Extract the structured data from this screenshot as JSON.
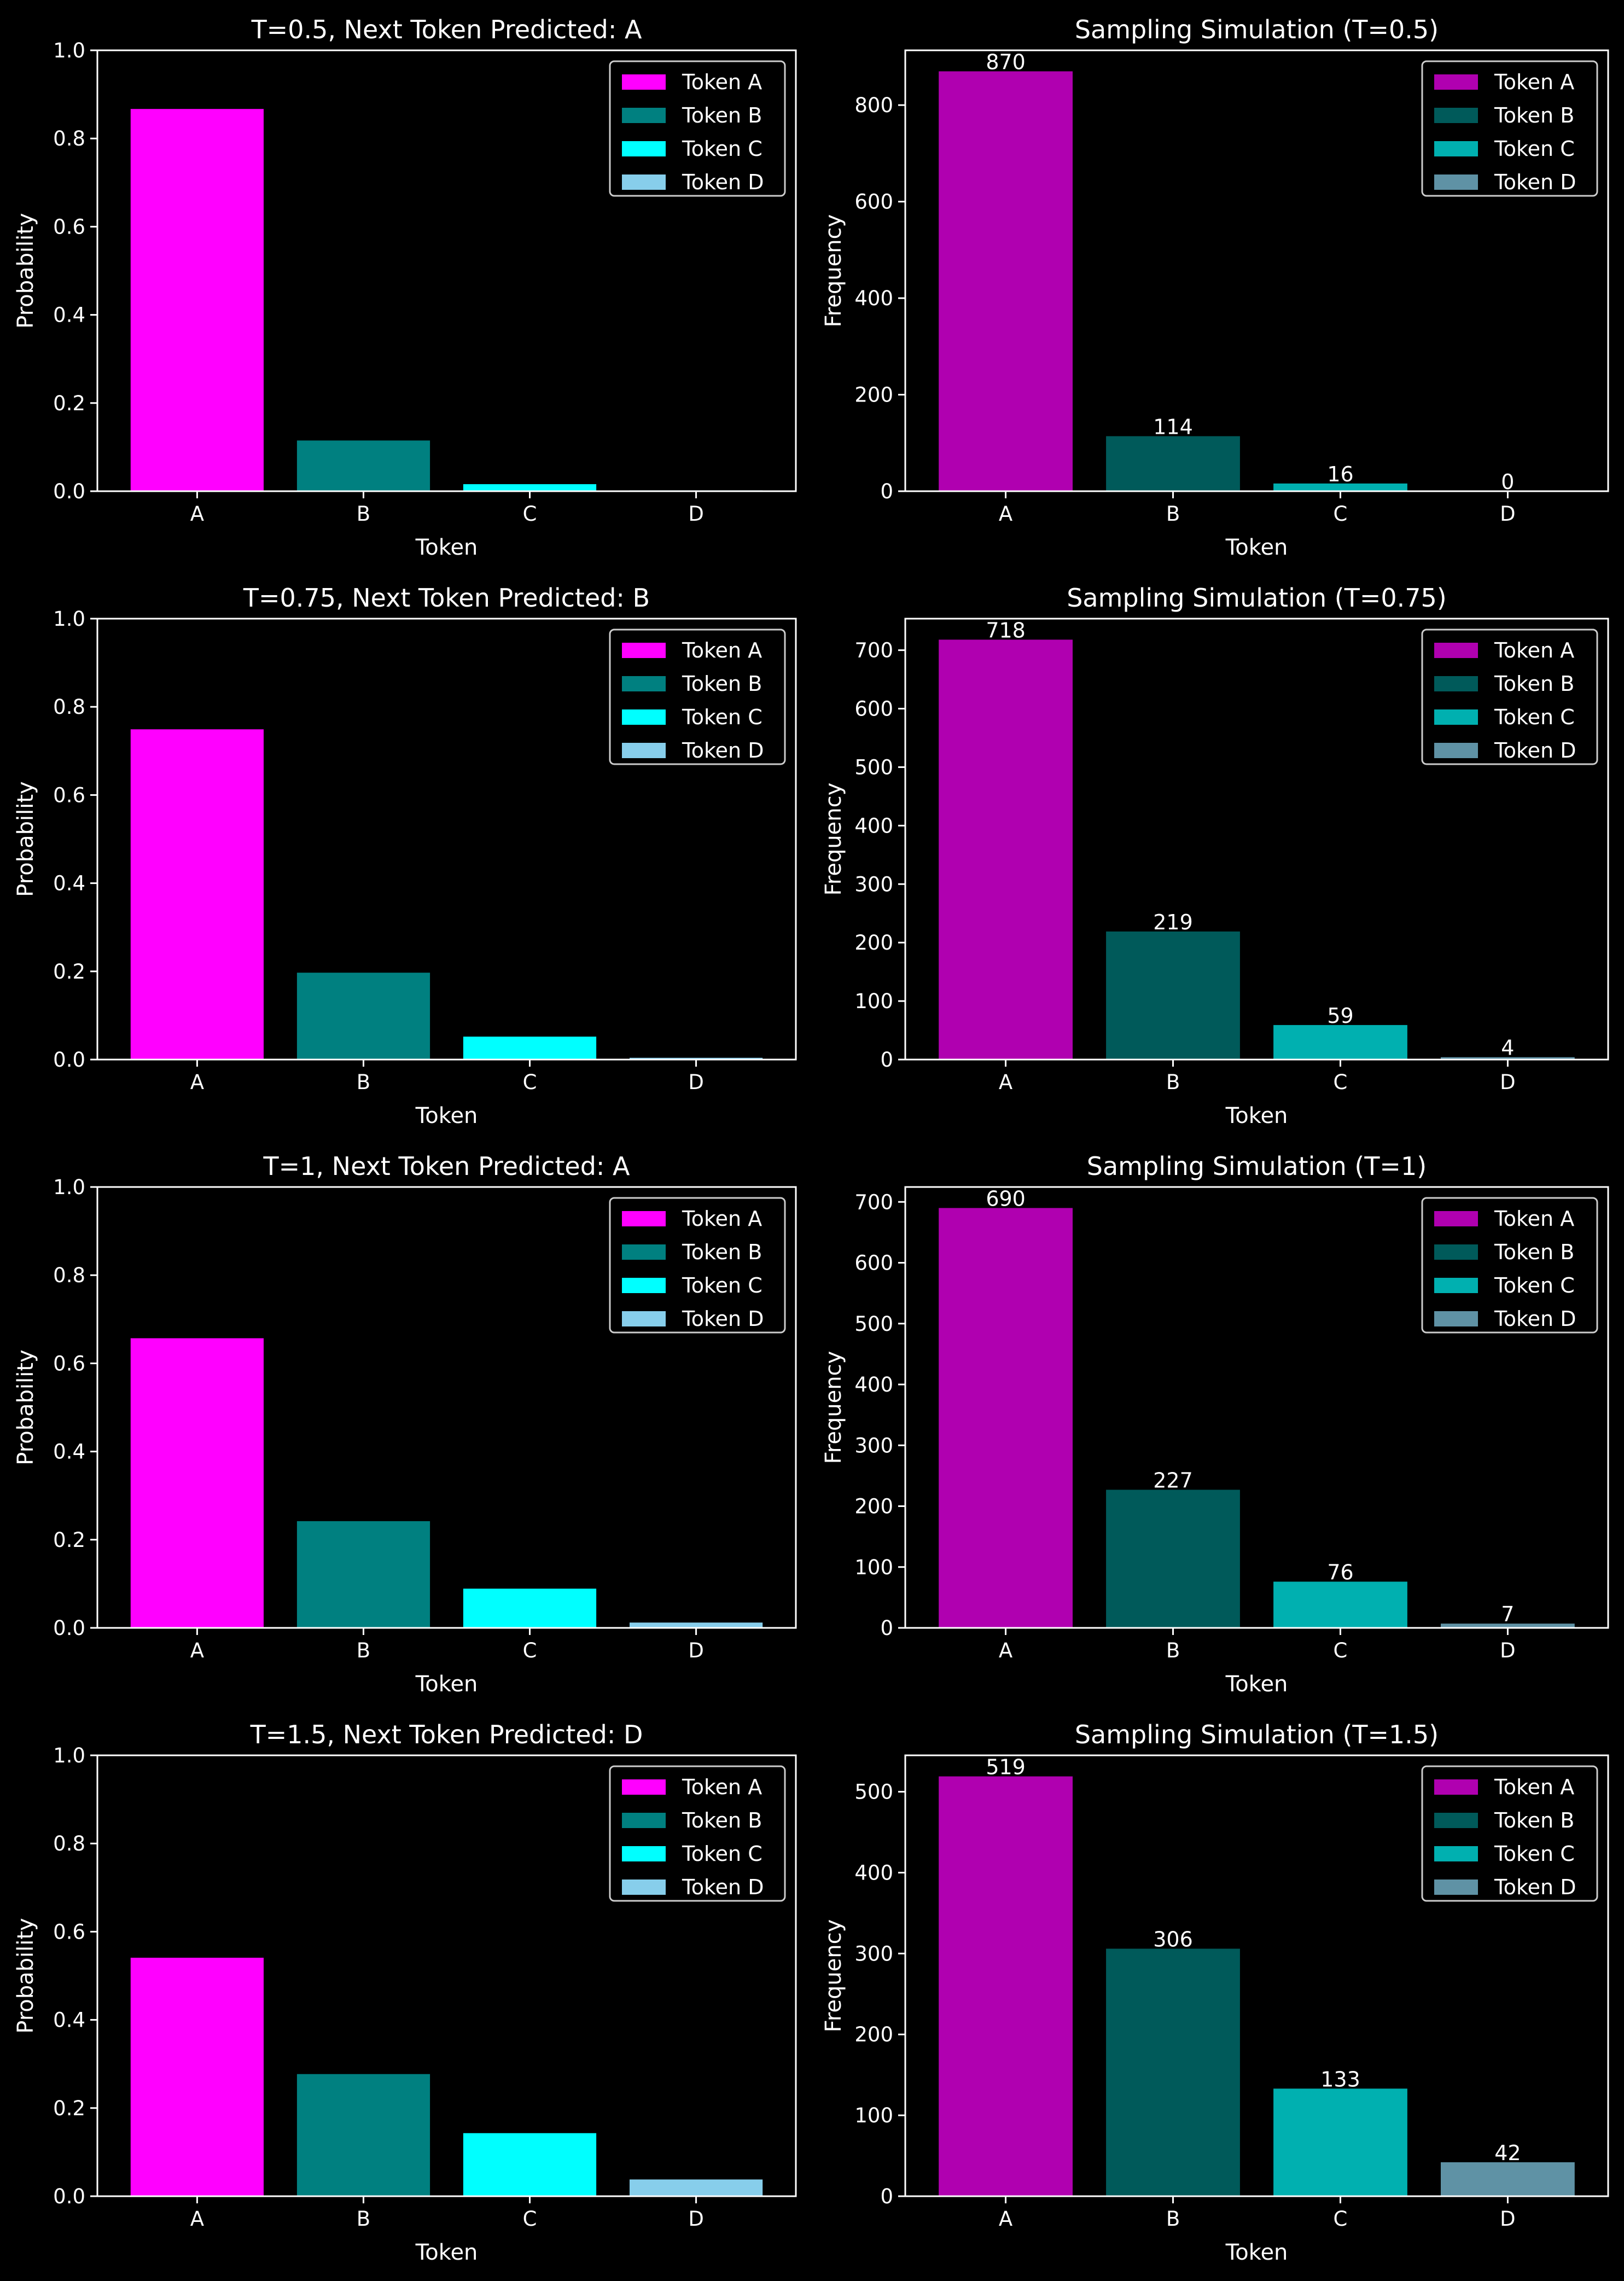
{
  "chart_data": [
    {
      "type": "bar",
      "title": "T=0.5, Next Token Predicted: A",
      "xlabel": "Token",
      "ylabel": "Probability",
      "categories": [
        "A",
        "B",
        "C",
        "D"
      ],
      "values": [
        0.867,
        0.115,
        0.016,
        0.002
      ],
      "ylim": [
        0,
        1.0
      ],
      "yticks": [
        0.0,
        0.2,
        0.4,
        0.6,
        0.8,
        1.0
      ],
      "ytick_labels": [
        "0.0",
        "0.2",
        "0.4",
        "0.6",
        "0.8",
        "1.0"
      ],
      "colors": [
        "#ff00ff",
        "#008080",
        "#00ffff",
        "#87ceeb"
      ],
      "legend": [
        "Token A",
        "Token B",
        "Token C",
        "Token D"
      ],
      "legend_position": "top-right",
      "grid": false
    },
    {
      "type": "bar",
      "title": "Sampling Simulation (T=0.5)",
      "xlabel": "Token",
      "ylabel": "Frequency",
      "categories": [
        "A",
        "B",
        "C",
        "D"
      ],
      "values": [
        870,
        114,
        16,
        0
      ],
      "data_labels": [
        "870",
        "114",
        "16",
        "0"
      ],
      "ylim": [
        0,
        913.5
      ],
      "yticks": [
        0,
        200,
        400,
        600,
        800
      ],
      "ytick_labels": [
        "0",
        "200",
        "400",
        "600",
        "800"
      ],
      "colors": [
        "#b000b0",
        "#005a5a",
        "#00b0b0",
        "#5f92a5"
      ],
      "legend": [
        "Token A",
        "Token B",
        "Token C",
        "Token D"
      ],
      "legend_position": "top-right",
      "grid": false
    },
    {
      "type": "bar",
      "title": "T=0.75, Next Token Predicted: B",
      "xlabel": "Token",
      "ylabel": "Probability",
      "categories": [
        "A",
        "B",
        "C",
        "D"
      ],
      "values": [
        0.749,
        0.197,
        0.052,
        0.004
      ],
      "ylim": [
        0,
        1.0
      ],
      "yticks": [
        0.0,
        0.2,
        0.4,
        0.6,
        0.8,
        1.0
      ],
      "ytick_labels": [
        "0.0",
        "0.2",
        "0.4",
        "0.6",
        "0.8",
        "1.0"
      ],
      "colors": [
        "#ff00ff",
        "#008080",
        "#00ffff",
        "#87ceeb"
      ],
      "legend": [
        "Token A",
        "Token B",
        "Token C",
        "Token D"
      ],
      "legend_position": "top-right",
      "grid": false
    },
    {
      "type": "bar",
      "title": "Sampling Simulation (T=0.75)",
      "xlabel": "Token",
      "ylabel": "Frequency",
      "categories": [
        "A",
        "B",
        "C",
        "D"
      ],
      "values": [
        718,
        219,
        59,
        4
      ],
      "data_labels": [
        "718",
        "219",
        "59",
        "4"
      ],
      "ylim": [
        0,
        753.9
      ],
      "yticks": [
        0,
        100,
        200,
        300,
        400,
        500,
        600,
        700
      ],
      "ytick_labels": [
        "0",
        "100",
        "200",
        "300",
        "400",
        "500",
        "600",
        "700"
      ],
      "colors": [
        "#b000b0",
        "#005a5a",
        "#00b0b0",
        "#5f92a5"
      ],
      "legend": [
        "Token A",
        "Token B",
        "Token C",
        "Token D"
      ],
      "legend_position": "top-right",
      "grid": false
    },
    {
      "type": "bar",
      "title": "T=1, Next Token Predicted: A",
      "xlabel": "Token",
      "ylabel": "Probability",
      "categories": [
        "A",
        "B",
        "C",
        "D"
      ],
      "values": [
        0.657,
        0.242,
        0.089,
        0.012
      ],
      "ylim": [
        0,
        1.0
      ],
      "yticks": [
        0.0,
        0.2,
        0.4,
        0.6,
        0.8,
        1.0
      ],
      "ytick_labels": [
        "0.0",
        "0.2",
        "0.4",
        "0.6",
        "0.8",
        "1.0"
      ],
      "colors": [
        "#ff00ff",
        "#008080",
        "#00ffff",
        "#87ceeb"
      ],
      "legend": [
        "Token A",
        "Token B",
        "Token C",
        "Token D"
      ],
      "legend_position": "top-right",
      "grid": false
    },
    {
      "type": "bar",
      "title": "Sampling Simulation (T=1)",
      "xlabel": "Token",
      "ylabel": "Frequency",
      "categories": [
        "A",
        "B",
        "C",
        "D"
      ],
      "values": [
        690,
        227,
        76,
        7
      ],
      "data_labels": [
        "690",
        "227",
        "76",
        "7"
      ],
      "ylim": [
        0,
        724.5
      ],
      "yticks": [
        0,
        100,
        200,
        300,
        400,
        500,
        600,
        700
      ],
      "ytick_labels": [
        "0",
        "100",
        "200",
        "300",
        "400",
        "500",
        "600",
        "700"
      ],
      "colors": [
        "#b000b0",
        "#005a5a",
        "#00b0b0",
        "#5f92a5"
      ],
      "legend": [
        "Token A",
        "Token B",
        "Token C",
        "Token D"
      ],
      "legend_position": "top-right",
      "grid": false
    },
    {
      "type": "bar",
      "title": "T=1.5, Next Token Predicted: D",
      "xlabel": "Token",
      "ylabel": "Probability",
      "categories": [
        "A",
        "B",
        "C",
        "D"
      ],
      "values": [
        0.541,
        0.277,
        0.143,
        0.038
      ],
      "ylim": [
        0,
        1.0
      ],
      "yticks": [
        0.0,
        0.2,
        0.4,
        0.6,
        0.8,
        1.0
      ],
      "ytick_labels": [
        "0.0",
        "0.2",
        "0.4",
        "0.6",
        "0.8",
        "1.0"
      ],
      "colors": [
        "#ff00ff",
        "#008080",
        "#00ffff",
        "#87ceeb"
      ],
      "legend": [
        "Token A",
        "Token B",
        "Token C",
        "Token D"
      ],
      "legend_position": "top-right",
      "grid": false
    },
    {
      "type": "bar",
      "title": "Sampling Simulation (T=1.5)",
      "xlabel": "Token",
      "ylabel": "Frequency",
      "categories": [
        "A",
        "B",
        "C",
        "D"
      ],
      "values": [
        519,
        306,
        133,
        42
      ],
      "data_labels": [
        "519",
        "306",
        "133",
        "42"
      ],
      "ylim": [
        0,
        545
      ],
      "yticks": [
        0,
        100,
        200,
        300,
        400,
        500
      ],
      "ytick_labels": [
        "0",
        "100",
        "200",
        "300",
        "400",
        "500"
      ],
      "colors": [
        "#b000b0",
        "#005a5a",
        "#00b0b0",
        "#5f92a5"
      ],
      "legend": [
        "Token A",
        "Token B",
        "Token C",
        "Token D"
      ],
      "legend_position": "top-right",
      "grid": false
    }
  ]
}
